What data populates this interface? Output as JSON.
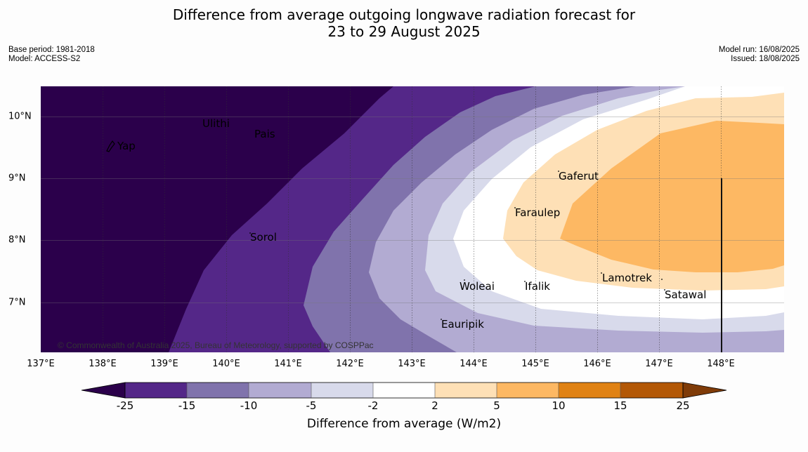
{
  "title": "Difference from average outgoing longwave radiation forecast for",
  "subtitle": "23 to 29 August 2025",
  "meta_left": [
    "Base period: 1981-2018",
    "Model: ACCESS-S2"
  ],
  "meta_right": [
    "Model run: 16/08/2025",
    "Issued: 18/08/2025"
  ],
  "map": {
    "lon_labels": [
      "137°E",
      "138°E",
      "139°E",
      "140°E",
      "141°E",
      "142°E",
      "143°E",
      "144°E",
      "145°E",
      "146°E",
      "147°E",
      "148°E"
    ],
    "lat_labels": [
      "10°N",
      "9°N",
      "8°N",
      "7°N"
    ],
    "places": [
      {
        "name": "Yap",
        "lon": 138.2,
        "lat": 9.5
      },
      {
        "name": "Ulithi",
        "lon": 139.6,
        "lat": 9.85
      },
      {
        "name": "Pais",
        "lon": 140.4,
        "lat": 9.7
      },
      {
        "name": "Sorol",
        "lon": 140.4,
        "lat": 8.0
      },
      {
        "name": "Gaferut",
        "lon": 145.4,
        "lat": 9.0
      },
      {
        "name": "Faraulep",
        "lon": 144.7,
        "lat": 8.4
      },
      {
        "name": "Woleai",
        "lon": 143.8,
        "lat": 7.25
      },
      {
        "name": "Ifalik",
        "lon": 144.8,
        "lat": 7.25
      },
      {
        "name": "Lamotrek",
        "lon": 146.1,
        "lat": 7.35
      },
      {
        "name": "Satawal",
        "lon": 147.1,
        "lat": 7.1
      },
      {
        "name": "Eauripik",
        "lon": 143.5,
        "lat": 6.6
      }
    ],
    "credit": "© Commonwealth of Australia 2025, Bureau of Meteorology, supported by COSPPac"
  },
  "colorbar": {
    "title": "Difference from average (W/m2)",
    "ticks": [
      "-25",
      "-15",
      "-10",
      "-5",
      "-2",
      "2",
      "5",
      "10",
      "15",
      "25"
    ],
    "colors": [
      "#2b004b",
      "#542788",
      "#8073ac",
      "#b2abd2",
      "#d8daeb",
      "#ffffff",
      "#fee0b6",
      "#fdb863",
      "#e08214",
      "#b35806",
      "#7f3b08"
    ]
  }
}
